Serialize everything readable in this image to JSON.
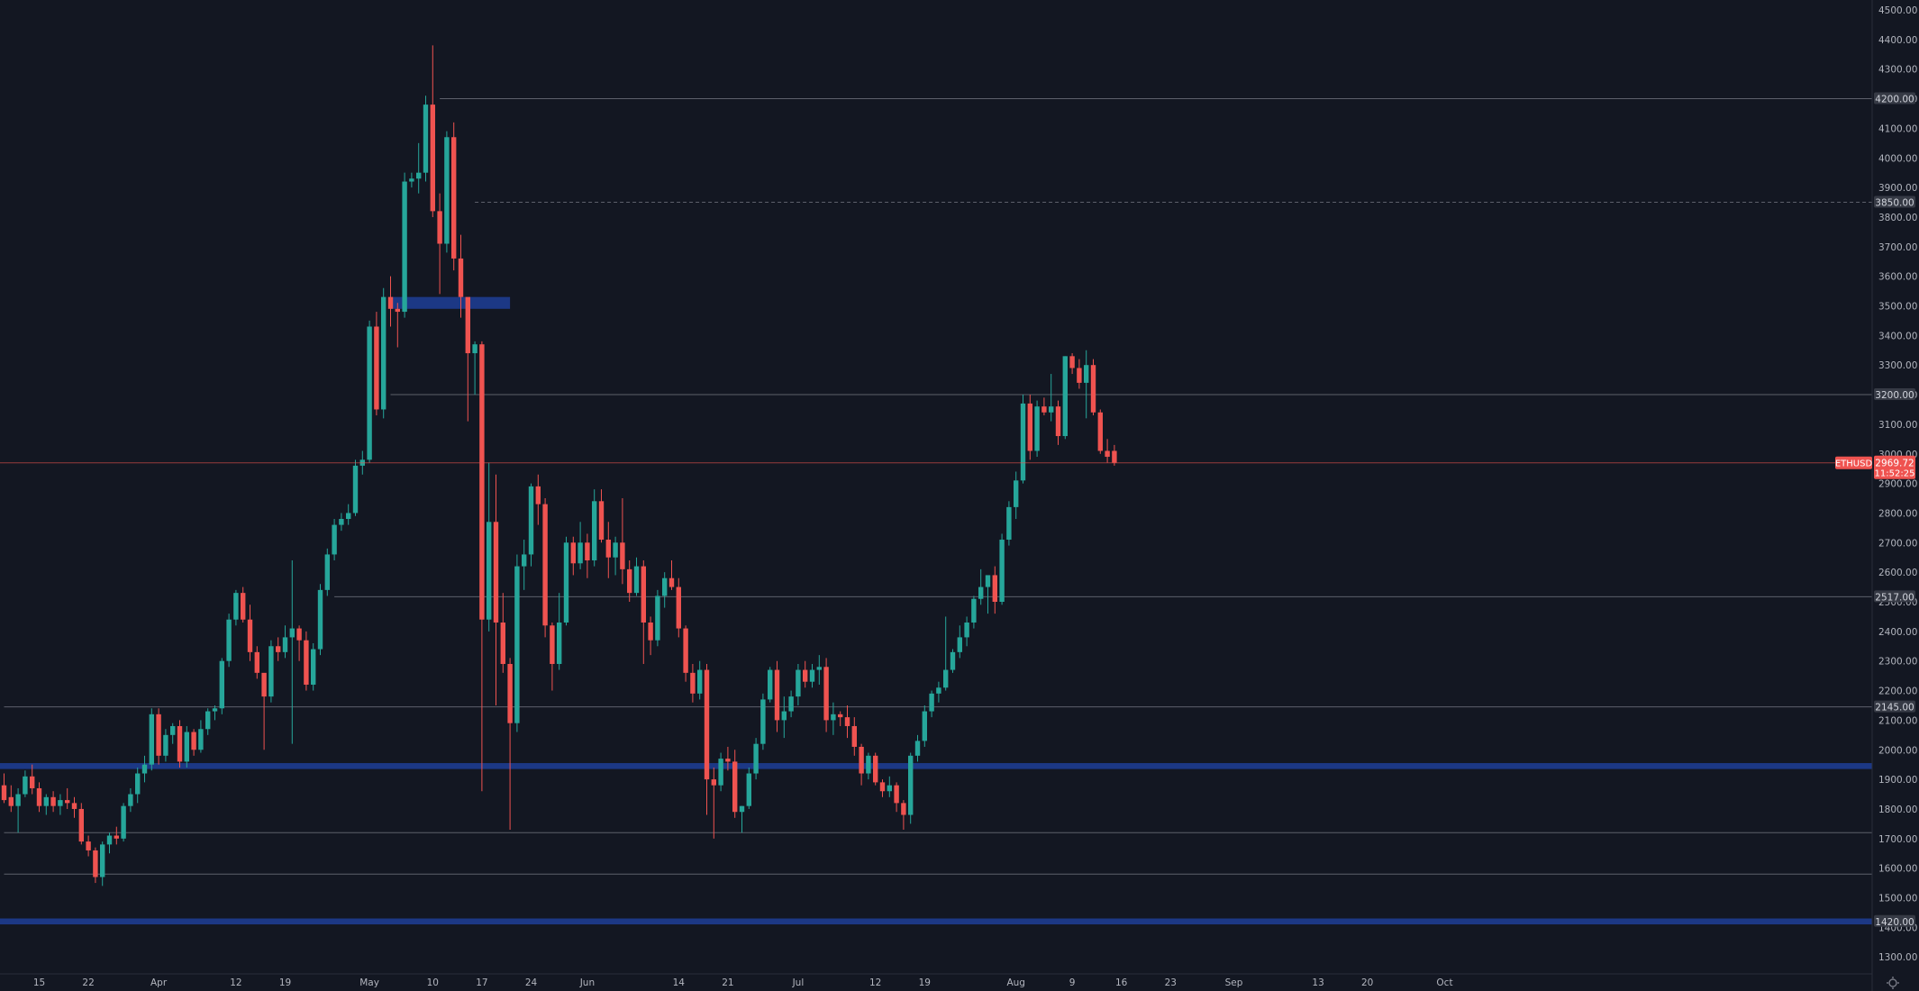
{
  "chart_data": {
    "type": "candlestick",
    "symbol": "ETHUSD",
    "last_price": "2969.72",
    "countdown": "11:52:25",
    "ylim": [
      1255,
      4520
    ],
    "y_ticks": [
      1300,
      1400,
      1500,
      1600,
      1700,
      1800,
      1900,
      2000,
      2100,
      2200,
      2300,
      2400,
      2500,
      2600,
      2700,
      2800,
      2900,
      3000,
      3100,
      3200,
      3300,
      3400,
      3500,
      3600,
      3700,
      3800,
      3900,
      4000,
      4100,
      4200,
      4300,
      4400,
      4500
    ],
    "x_ticks": [
      {
        "label": "15",
        "bar": 5
      },
      {
        "label": "22",
        "bar": 12
      },
      {
        "label": "Apr",
        "bar": 22
      },
      {
        "label": "12",
        "bar": 33
      },
      {
        "label": "19",
        "bar": 40
      },
      {
        "label": "May",
        "bar": 52
      },
      {
        "label": "10",
        "bar": 61
      },
      {
        "label": "17",
        "bar": 68
      },
      {
        "label": "24",
        "bar": 75
      },
      {
        "label": "Jun",
        "bar": 83
      },
      {
        "label": "14",
        "bar": 96
      },
      {
        "label": "21",
        "bar": 103
      },
      {
        "label": "Jul",
        "bar": 113
      },
      {
        "label": "12",
        "bar": 124
      },
      {
        "label": "19",
        "bar": 131
      },
      {
        "label": "Aug",
        "bar": 144
      },
      {
        "label": "9",
        "bar": 152
      },
      {
        "label": "16",
        "bar": 159
      },
      {
        "label": "23",
        "bar": 166
      },
      {
        "label": "Sep",
        "bar": 175
      },
      {
        "label": "13",
        "bar": 187
      },
      {
        "label": "20",
        "bar": 194
      },
      {
        "label": "Oct",
        "bar": 205
      }
    ],
    "horizontal_levels": [
      {
        "price": 4200,
        "label": "4200.00",
        "style": "solid",
        "start_bar": 62
      },
      {
        "price": 3850,
        "label": "3850.00",
        "style": "dashed",
        "start_bar": 67
      },
      {
        "price": 3200,
        "label": "3200.00",
        "style": "solid",
        "start_bar": 55
      },
      {
        "price": 2517,
        "label": "2517.00",
        "style": "solid",
        "start_bar": 47
      },
      {
        "price": 2145,
        "label": "2145.00",
        "style": "solid",
        "start_bar": 0
      },
      {
        "price": 1720,
        "label": "",
        "style": "solid",
        "start_bar": 0
      },
      {
        "price": 1580,
        "label": "",
        "style": "solid",
        "start_bar": 0
      }
    ],
    "zones": [
      {
        "low": 1935,
        "high": 1955,
        "start_bar": -1,
        "end_bar": "right"
      },
      {
        "low": 1410,
        "high": 1430,
        "label": "1420.00",
        "start_bar": -1,
        "end_bar": "right"
      },
      {
        "low": 3490,
        "high": 3530,
        "start_bar": 55,
        "end_bar": 72
      }
    ],
    "candles": [
      [
        1880,
        1920,
        1820,
        1830
      ],
      [
        1840,
        1880,
        1790,
        1810
      ],
      [
        1810,
        1870,
        1720,
        1850
      ],
      [
        1850,
        1930,
        1840,
        1910
      ],
      [
        1910,
        1950,
        1850,
        1870
      ],
      [
        1870,
        1890,
        1790,
        1810
      ],
      [
        1810,
        1850,
        1780,
        1840
      ],
      [
        1840,
        1860,
        1790,
        1810
      ],
      [
        1810,
        1850,
        1780,
        1830
      ],
      [
        1830,
        1870,
        1800,
        1820
      ],
      [
        1820,
        1840,
        1770,
        1800
      ],
      [
        1800,
        1820,
        1680,
        1690
      ],
      [
        1690,
        1710,
        1640,
        1660
      ],
      [
        1660,
        1670,
        1550,
        1570
      ],
      [
        1570,
        1690,
        1540,
        1680
      ],
      [
        1680,
        1720,
        1650,
        1710
      ],
      [
        1710,
        1740,
        1680,
        1700
      ],
      [
        1700,
        1820,
        1690,
        1810
      ],
      [
        1810,
        1870,
        1790,
        1850
      ],
      [
        1850,
        1940,
        1820,
        1920
      ],
      [
        1920,
        1980,
        1890,
        1950
      ],
      [
        1950,
        2140,
        1930,
        2120
      ],
      [
        2120,
        2140,
        1950,
        1980
      ],
      [
        1980,
        2070,
        1960,
        2050
      ],
      [
        2050,
        2090,
        2020,
        2080
      ],
      [
        2080,
        2100,
        1940,
        1960
      ],
      [
        1960,
        2080,
        1940,
        2060
      ],
      [
        2060,
        2070,
        1980,
        2000
      ],
      [
        2000,
        2100,
        1990,
        2070
      ],
      [
        2070,
        2140,
        2050,
        2130
      ],
      [
        2130,
        2150,
        2100,
        2140
      ],
      [
        2140,
        2310,
        2120,
        2300
      ],
      [
        2300,
        2460,
        2280,
        2440
      ],
      [
        2440,
        2540,
        2420,
        2530
      ],
      [
        2530,
        2550,
        2430,
        2440
      ],
      [
        2440,
        2490,
        2300,
        2330
      ],
      [
        2330,
        2350,
        2240,
        2260
      ],
      [
        2260,
        2240,
        2000,
        2180
      ],
      [
        2180,
        2370,
        2160,
        2350
      ],
      [
        2350,
        2380,
        2300,
        2330
      ],
      [
        2330,
        2420,
        2310,
        2380
      ],
      [
        2380,
        2640,
        2020,
        2410
      ],
      [
        2410,
        2420,
        2300,
        2370
      ],
      [
        2370,
        2400,
        2200,
        2220
      ],
      [
        2220,
        2360,
        2200,
        2340
      ],
      [
        2340,
        2560,
        2320,
        2540
      ],
      [
        2540,
        2680,
        2520,
        2660
      ],
      [
        2660,
        2780,
        2640,
        2760
      ],
      [
        2760,
        2800,
        2740,
        2780
      ],
      [
        2780,
        2830,
        2760,
        2800
      ],
      [
        2800,
        2980,
        2790,
        2960
      ],
      [
        2960,
        3010,
        2930,
        2980
      ],
      [
        2980,
        3450,
        2970,
        3430
      ],
      [
        3430,
        3480,
        3130,
        3150
      ],
      [
        3150,
        3560,
        3120,
        3530
      ],
      [
        3530,
        3600,
        3430,
        3490
      ],
      [
        3490,
        3510,
        3360,
        3480
      ],
      [
        3480,
        3950,
        3460,
        3920
      ],
      [
        3920,
        3950,
        3900,
        3930
      ],
      [
        3930,
        4050,
        3880,
        3950
      ],
      [
        3950,
        4210,
        3920,
        4180
      ],
      [
        4180,
        4380,
        3800,
        3820
      ],
      [
        3820,
        3880,
        3540,
        3710
      ],
      [
        3710,
        4090,
        3680,
        4070
      ],
      [
        4070,
        4120,
        3620,
        3660
      ],
      [
        3660,
        3740,
        3460,
        3530
      ],
      [
        3530,
        3520,
        3110,
        3340
      ],
      [
        3340,
        3380,
        3200,
        3370
      ],
      [
        3370,
        3380,
        1860,
        2440
      ],
      [
        2440,
        2970,
        2400,
        2770
      ],
      [
        2770,
        2930,
        2150,
        2430
      ],
      [
        2430,
        2530,
        2260,
        2290
      ],
      [
        2290,
        2310,
        1730,
        2090
      ],
      [
        2090,
        2660,
        2060,
        2620
      ],
      [
        2620,
        2710,
        2540,
        2660
      ],
      [
        2660,
        2900,
        2620,
        2890
      ],
      [
        2890,
        2930,
        2760,
        2830
      ],
      [
        2830,
        2850,
        2380,
        2420
      ],
      [
        2420,
        2430,
        2200,
        2290
      ],
      [
        2290,
        2530,
        2270,
        2430
      ],
      [
        2430,
        2720,
        2420,
        2700
      ],
      [
        2700,
        2720,
        2590,
        2630
      ],
      [
        2630,
        2770,
        2610,
        2700
      ],
      [
        2700,
        2730,
        2580,
        2640
      ],
      [
        2640,
        2880,
        2620,
        2840
      ],
      [
        2840,
        2880,
        2700,
        2710
      ],
      [
        2710,
        2770,
        2580,
        2650
      ],
      [
        2650,
        2720,
        2590,
        2700
      ],
      [
        2700,
        2850,
        2560,
        2610
      ],
      [
        2610,
        2640,
        2500,
        2530
      ],
      [
        2530,
        2650,
        2520,
        2620
      ],
      [
        2620,
        2640,
        2290,
        2430
      ],
      [
        2430,
        2450,
        2320,
        2370
      ],
      [
        2370,
        2540,
        2350,
        2520
      ],
      [
        2520,
        2600,
        2480,
        2580
      ],
      [
        2580,
        2640,
        2540,
        2550
      ],
      [
        2550,
        2580,
        2380,
        2410
      ],
      [
        2410,
        2420,
        2230,
        2260
      ],
      [
        2260,
        2290,
        2160,
        2190
      ],
      [
        2190,
        2300,
        2170,
        2270
      ],
      [
        2270,
        2290,
        1780,
        1900
      ],
      [
        1900,
        1940,
        1700,
        1880
      ],
      [
        1880,
        1990,
        1860,
        1970
      ],
      [
        1970,
        2010,
        1930,
        1960
      ],
      [
        1960,
        2000,
        1770,
        1790
      ],
      [
        1790,
        1810,
        1720,
        1810
      ],
      [
        1810,
        1940,
        1800,
        1920
      ],
      [
        1920,
        2040,
        1900,
        2020
      ],
      [
        2020,
        2190,
        2000,
        2170
      ],
      [
        2170,
        2280,
        2160,
        2270
      ],
      [
        2270,
        2300,
        2060,
        2100
      ],
      [
        2100,
        2180,
        2040,
        2130
      ],
      [
        2130,
        2200,
        2110,
        2180
      ],
      [
        2180,
        2290,
        2150,
        2270
      ],
      [
        2270,
        2300,
        2210,
        2230
      ],
      [
        2230,
        2290,
        2210,
        2270
      ],
      [
        2270,
        2320,
        2220,
        2280
      ],
      [
        2280,
        2310,
        2060,
        2100
      ],
      [
        2100,
        2160,
        2050,
        2120
      ],
      [
        2120,
        2130,
        2080,
        2110
      ],
      [
        2110,
        2150,
        2040,
        2080
      ],
      [
        2080,
        2110,
        1980,
        2010
      ],
      [
        2010,
        2020,
        1880,
        1920
      ],
      [
        1920,
        1990,
        1900,
        1980
      ],
      [
        1980,
        1990,
        1880,
        1890
      ],
      [
        1890,
        1900,
        1840,
        1860
      ],
      [
        1860,
        1910,
        1840,
        1880
      ],
      [
        1880,
        1890,
        1790,
        1820
      ],
      [
        1820,
        1830,
        1730,
        1780
      ],
      [
        1780,
        1990,
        1750,
        1980
      ],
      [
        1980,
        2050,
        1960,
        2030
      ],
      [
        2030,
        2150,
        2010,
        2130
      ],
      [
        2130,
        2200,
        2110,
        2190
      ],
      [
        2190,
        2230,
        2160,
        2210
      ],
      [
        2210,
        2450,
        2200,
        2270
      ],
      [
        2270,
        2340,
        2260,
        2330
      ],
      [
        2330,
        2420,
        2310,
        2380
      ],
      [
        2380,
        2450,
        2350,
        2430
      ],
      [
        2430,
        2520,
        2410,
        2510
      ],
      [
        2510,
        2610,
        2490,
        2550
      ],
      [
        2550,
        2580,
        2460,
        2590
      ],
      [
        2590,
        2620,
        2460,
        2500
      ],
      [
        2500,
        2730,
        2490,
        2710
      ],
      [
        2710,
        2840,
        2690,
        2820
      ],
      [
        2820,
        2940,
        2780,
        2910
      ],
      [
        2910,
        3200,
        2900,
        3170
      ],
      [
        3170,
        3200,
        2980,
        3010
      ],
      [
        3010,
        3180,
        2990,
        3160
      ],
      [
        3160,
        3190,
        3130,
        3140
      ],
      [
        3140,
        3270,
        3110,
        3160
      ],
      [
        3160,
        3180,
        3030,
        3060
      ],
      [
        3060,
        3330,
        3050,
        3330
      ],
      [
        3330,
        3340,
        3270,
        3290
      ],
      [
        3290,
        3320,
        3220,
        3240
      ],
      [
        3240,
        3350,
        3120,
        3300
      ],
      [
        3300,
        3320,
        3130,
        3140
      ],
      [
        3140,
        3150,
        3000,
        3010
      ],
      [
        3010,
        3050,
        2970,
        2990
      ],
      [
        3010,
        3030,
        2960,
        2969.72
      ]
    ]
  }
}
